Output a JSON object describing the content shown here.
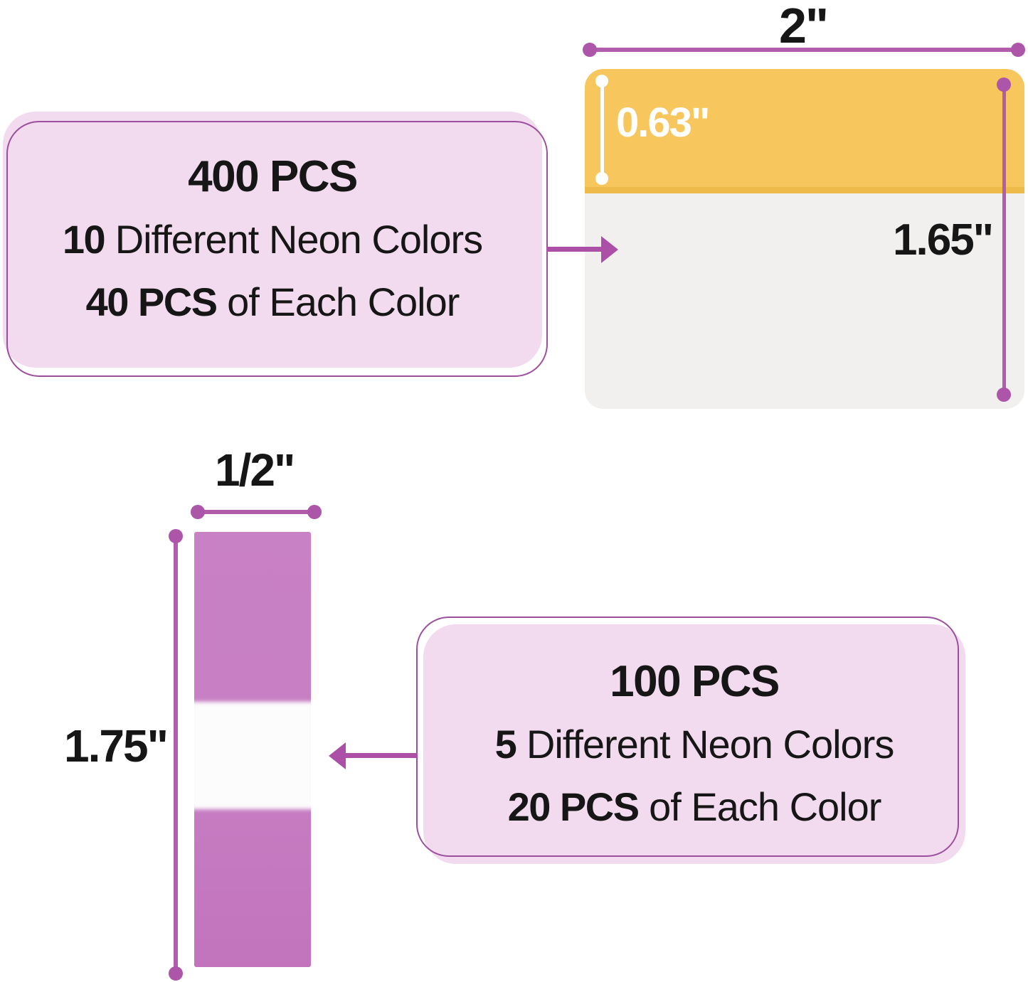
{
  "colors": {
    "accent_purple": "#ab4fa7",
    "dimension_line_purple": "#b25cae",
    "box_outline_purple": "#9c4f9c",
    "box_pink": "#f2daef",
    "tab_yellow": "#f7c75d",
    "tab_yellow_edge": "#eebb4a",
    "tab_body_white": "#f1f0ef",
    "tab_orchid": "#c77ec3",
    "text_black": "#161616"
  },
  "info_box_top": {
    "line1": "400 PCS",
    "line2_bold": "10",
    "line2_rest": " Different Neon Colors",
    "line3_bold": "40 PCS",
    "line3_rest": " of Each Color"
  },
  "info_box_bottom": {
    "line1": "100 PCS",
    "line2_bold": "5",
    "line2_rest": " Different Neon Colors",
    "line3_bold": "20 PCS",
    "line3_rest": " of Each Color"
  },
  "tab_large": {
    "width_label": "2\"",
    "flap_height_label": "0.63\"",
    "body_height_label": "1.65\""
  },
  "tab_small": {
    "width_label": "1/2\"",
    "height_label": "1.75\""
  }
}
